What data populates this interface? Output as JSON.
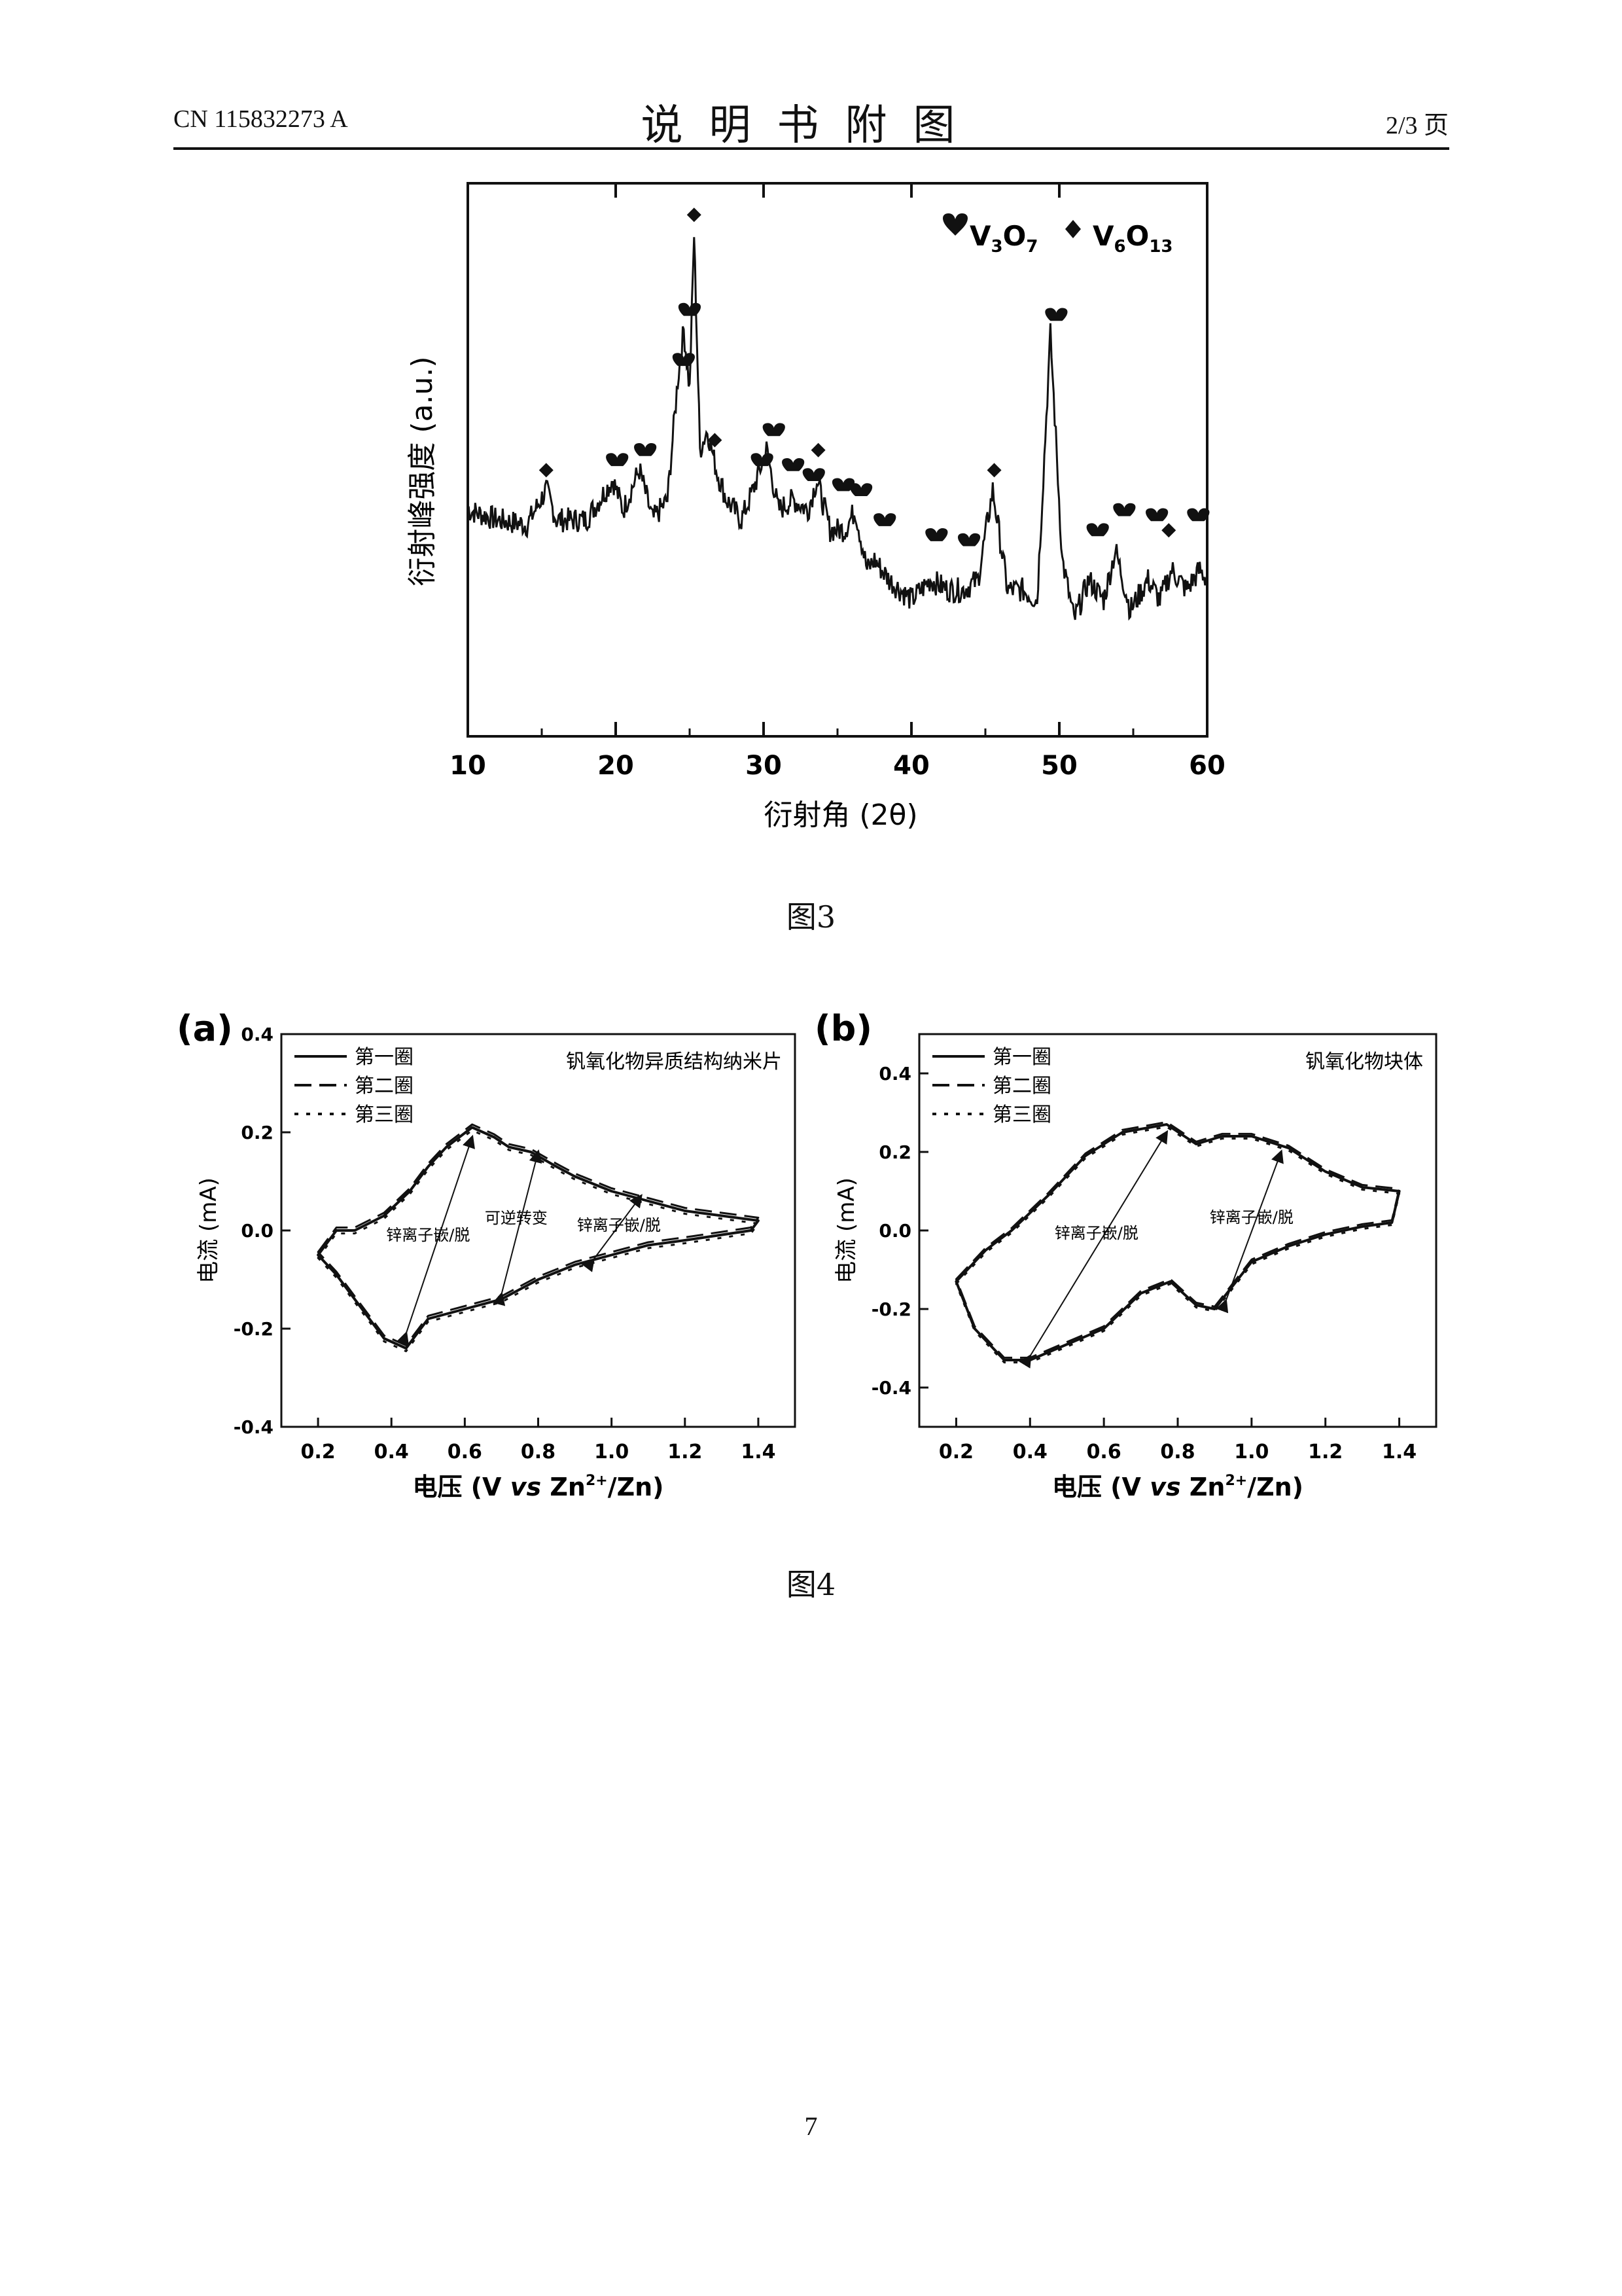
{
  "header": {
    "patent_no": "CN 115832273 A",
    "title": "说明书附图",
    "page_of": "2/3 页"
  },
  "figure3": {
    "caption": "图3",
    "chart_data": {
      "type": "line",
      "xlabel": "衍射角 (2θ)",
      "ylabel": "衍射峰强度 (a.u.)",
      "xlim": [
        10,
        60
      ],
      "xticks": [
        "10",
        "20",
        "30",
        "40",
        "50",
        "60"
      ],
      "legend": [
        {
          "marker": "heart",
          "label": "V3O7",
          "main": "V",
          "sub1": "3",
          "mid": "O",
          "sub2": "7"
        },
        {
          "marker": "diamond",
          "label": "V6O13",
          "main": "V",
          "sub1": "6",
          "mid": "O",
          "sub2": "13"
        }
      ],
      "legend_position": "top-right",
      "x": [
        10,
        12,
        14,
        15.3,
        16,
        18,
        19.8,
        20.5,
        21.6,
        22.5,
        23.5,
        24.2,
        24.6,
        25.0,
        25.3,
        25.7,
        26.2,
        26.8,
        27.5,
        28.5,
        29.3,
        30.2,
        31.0,
        32.0,
        33.0,
        33.6,
        34.5,
        35.5,
        36.2,
        37.0,
        37.5,
        38.5,
        40.0,
        41.3,
        42.5,
        43.5,
        44.5,
        45.5,
        46.5,
        47.5,
        48.5,
        49.4,
        50.2,
        51.0,
        52.0,
        53.0,
        53.8,
        54.8,
        56.0,
        56.8,
        57.6,
        58.6,
        59.5,
        60
      ],
      "y": [
        40,
        38,
        37,
        44,
        38,
        38,
        46,
        40,
        48,
        38,
        42,
        66,
        76,
        64,
        95,
        52,
        56,
        48,
        42,
        38,
        44,
        52,
        40,
        42,
        40,
        46,
        36,
        36,
        40,
        28,
        30,
        26,
        22,
        26,
        24,
        24,
        26,
        44,
        24,
        24,
        22,
        75,
        30,
        18,
        26,
        22,
        32,
        20,
        26,
        22,
        28,
        24,
        28,
        26
      ],
      "annotations": [
        {
          "x": 15.3,
          "y": 44,
          "marker": "diamond"
        },
        {
          "x": 19.7,
          "y": 46,
          "marker": "heart"
        },
        {
          "x": 21.6,
          "y": 48,
          "marker": "heart"
        },
        {
          "x": 24.2,
          "y": 66,
          "marker": "heart"
        },
        {
          "x": 24.6,
          "y": 76,
          "marker": "heart"
        },
        {
          "x": 25.3,
          "y": 95,
          "marker": "diamond"
        },
        {
          "x": 26.7,
          "y": 50,
          "marker": "diamond"
        },
        {
          "x": 29.5,
          "y": 46,
          "marker": "heart"
        },
        {
          "x": 30.3,
          "y": 52,
          "marker": "heart"
        },
        {
          "x": 31.6,
          "y": 45,
          "marker": "heart"
        },
        {
          "x": 33.0,
          "y": 43,
          "marker": "heart"
        },
        {
          "x": 33.7,
          "y": 48,
          "marker": "diamond"
        },
        {
          "x": 35.0,
          "y": 41,
          "marker": "heart"
        },
        {
          "x": 36.2,
          "y": 40,
          "marker": "heart"
        },
        {
          "x": 37.8,
          "y": 34,
          "marker": "heart"
        },
        {
          "x": 41.3,
          "y": 31,
          "marker": "heart"
        },
        {
          "x": 43.5,
          "y": 30,
          "marker": "heart"
        },
        {
          "x": 45.6,
          "y": 44,
          "marker": "diamond"
        },
        {
          "x": 49.4,
          "y": 75,
          "marker": "heart"
        },
        {
          "x": 52.2,
          "y": 32,
          "marker": "heart"
        },
        {
          "x": 54.0,
          "y": 36,
          "marker": "heart"
        },
        {
          "x": 56.2,
          "y": 35,
          "marker": "heart"
        },
        {
          "x": 57.4,
          "y": 32,
          "marker": "diamond"
        },
        {
          "x": 59.0,
          "y": 35,
          "marker": "heart"
        }
      ]
    }
  },
  "figure4": {
    "caption": "图4",
    "chart_data": [
      {
        "type": "line",
        "panel_label": "(a)",
        "title": "钒氧化物异质结构纳米片",
        "xlabel_main": "电压 (V ",
        "xlabel_vs": "vs",
        "xlabel_zn": " Zn",
        "xlabel_sup": "2+",
        "xlabel_tail": "/Zn)",
        "ylabel": "电流 (mA)",
        "xlim": [
          0.1,
          1.5
        ],
        "ylim": [
          -0.4,
          0.4
        ],
        "xticks": [
          "0.2",
          "0.4",
          "0.6",
          "0.8",
          "1.0",
          "1.2",
          "1.4"
        ],
        "yticks": [
          "-0.4",
          "-0.2",
          "0.0",
          "0.2",
          "0.4"
        ],
        "legend": [
          "第一圈",
          "第二圈",
          "第三圈"
        ],
        "legend_position": "top-left",
        "annotations": [
          "锌离子嵌/脱",
          "可逆转变",
          "锌离子嵌/脱"
        ],
        "series_x": [
          0.2,
          0.25,
          0.3,
          0.38,
          0.45,
          0.5,
          0.55,
          0.62,
          0.68,
          0.72,
          0.78,
          0.85,
          0.9,
          1.0,
          1.1,
          1.2,
          1.3,
          1.4,
          1.38,
          1.2,
          1.1,
          1.0,
          0.9,
          0.8,
          0.7,
          0.6,
          0.5,
          0.44,
          0.38,
          0.3,
          0.25,
          0.2
        ],
        "series_y": [
          -0.05,
          0.0,
          0.0,
          0.03,
          0.08,
          0.13,
          0.17,
          0.21,
          0.19,
          0.17,
          0.16,
          0.13,
          0.11,
          0.08,
          0.06,
          0.04,
          0.03,
          0.02,
          0.0,
          -0.02,
          -0.03,
          -0.05,
          -0.07,
          -0.1,
          -0.14,
          -0.16,
          -0.18,
          -0.24,
          -0.22,
          -0.14,
          -0.09,
          -0.05
        ]
      },
      {
        "type": "line",
        "panel_label": "(b)",
        "title": "钒氧化物块体",
        "xlabel_main": "电压 (V ",
        "xlabel_vs": "vs",
        "xlabel_zn": " Zn",
        "xlabel_sup": "2+",
        "xlabel_tail": "/Zn)",
        "ylabel": "电流 (mA)",
        "xlim": [
          0.1,
          1.5
        ],
        "ylim": [
          -0.5,
          0.5
        ],
        "xticks": [
          "0.2",
          "0.4",
          "0.6",
          "0.8",
          "1.0",
          "1.2",
          "1.4"
        ],
        "yticks": [
          "-0.4",
          "-0.2",
          "0.0",
          "0.2",
          "0.4"
        ],
        "legend": [
          "第一圈",
          "第二圈",
          "第三圈"
        ],
        "legend_position": "top-left",
        "annotations": [
          "锌离子嵌/脱",
          "锌离子嵌/脱"
        ],
        "series_x": [
          0.2,
          0.28,
          0.35,
          0.45,
          0.55,
          0.65,
          0.77,
          0.85,
          0.92,
          1.0,
          1.1,
          1.2,
          1.3,
          1.4,
          1.38,
          1.3,
          1.2,
          1.1,
          1.0,
          0.9,
          0.85,
          0.78,
          0.7,
          0.6,
          0.5,
          0.4,
          0.33,
          0.25,
          0.2
        ],
        "series_y": [
          -0.13,
          -0.05,
          0.0,
          0.09,
          0.19,
          0.25,
          0.27,
          0.22,
          0.24,
          0.24,
          0.21,
          0.15,
          0.11,
          0.1,
          0.02,
          0.01,
          -0.01,
          -0.04,
          -0.08,
          -0.2,
          -0.19,
          -0.13,
          -0.16,
          -0.25,
          -0.29,
          -0.33,
          -0.33,
          -0.25,
          -0.13
        ]
      }
    ]
  },
  "page_number": "7"
}
